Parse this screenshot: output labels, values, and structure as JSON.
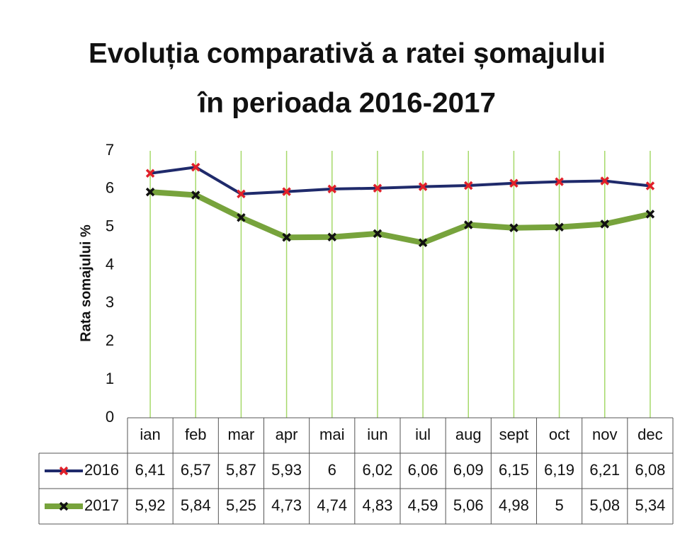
{
  "chart_data": {
    "type": "line",
    "title": [
      "Evoluția comparativă a ratei șomajului",
      "în perioada 2016-2017"
    ],
    "y_label": "Rata somajului %",
    "categories": [
      "ian",
      "feb",
      "mar",
      "apr",
      "mai",
      "iun",
      "iul",
      "aug",
      "sept",
      "oct",
      "nov",
      "dec"
    ],
    "series": [
      {
        "name": "2016",
        "color": "#1f2a6b",
        "marker_color": "#e0202a",
        "line_width": 4,
        "values": [
          6.41,
          6.57,
          5.87,
          5.93,
          6,
          6.02,
          6.06,
          6.09,
          6.15,
          6.19,
          6.21,
          6.08
        ],
        "value_labels": [
          "6,41",
          "6,57",
          "5,87",
          "5,93",
          "6",
          "6,02",
          "6,06",
          "6,09",
          "6,15",
          "6,19",
          "6,21",
          "6,08"
        ]
      },
      {
        "name": "2017",
        "color": "#77a33c",
        "marker_color": "#111111",
        "line_width": 8,
        "values": [
          5.92,
          5.84,
          5.25,
          4.73,
          4.74,
          4.83,
          4.59,
          5.06,
          4.98,
          5,
          5.08,
          5.34
        ],
        "value_labels": [
          "5,92",
          "5,84",
          "5,25",
          "4,73",
          "4,74",
          "4,83",
          "4,59",
          "5,06",
          "4,98",
          "5",
          "5,08",
          "5,34"
        ]
      }
    ],
    "ylim": [
      0,
      7
    ],
    "yticks": [
      0,
      1,
      2,
      3,
      4,
      5,
      6,
      7
    ],
    "grid_color": "#a6d96a"
  }
}
